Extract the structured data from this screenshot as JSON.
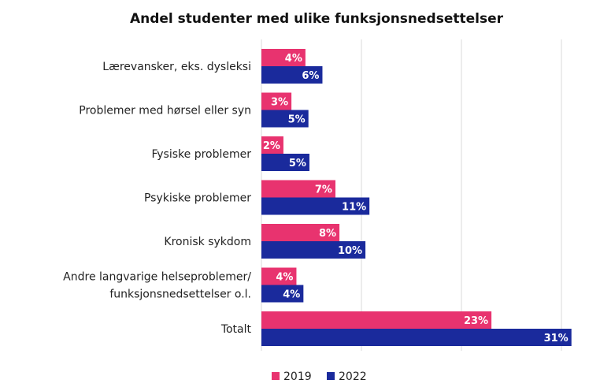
{
  "chart_data": {
    "type": "bar",
    "orientation": "horizontal",
    "title": "Andel studenter med ulike funksjonsnedsettelser",
    "xlabel": "",
    "ylabel": "",
    "categories": [
      "Lærevansker, eks. dysleksi",
      "Problemer med hørsel eller syn",
      "Fysiske problemer",
      "Psykiske problemer",
      "Kronisk sykdom",
      "Andre langvarige helseproblemer/ funksjonsnedsettelser o.l.",
      "Totalt"
    ],
    "category_lines": [
      [
        "Lærevansker, eks. dysleksi"
      ],
      [
        "Problemer med hørsel eller syn"
      ],
      [
        "Fysiske problemer"
      ],
      [
        "Psykiske problemer"
      ],
      [
        "Kronisk sykdom"
      ],
      [
        "Andre langvarige helseproblemer/",
        "funksjonsnedsettelser o.l."
      ],
      [
        "Totalt"
      ]
    ],
    "series": [
      {
        "name": "2019",
        "color": "#e8336f",
        "values": [
          4.4,
          3.0,
          2.2,
          7.4,
          7.8,
          3.5,
          23.0
        ],
        "labels": [
          "4%",
          "3%",
          "2%",
          "7%",
          "8%",
          "4%",
          "23%"
        ]
      },
      {
        "name": "2022",
        "color": "#1a2a9c",
        "values": [
          6.1,
          4.7,
          4.8,
          10.8,
          10.4,
          4.2,
          31.0
        ],
        "labels": [
          "6%",
          "5%",
          "5%",
          "11%",
          "10%",
          "4%",
          "31%"
        ]
      }
    ],
    "xlim": [
      0,
      30
    ],
    "gridlines": [
      10,
      20,
      30
    ],
    "grid": true,
    "gridline_color": "#d9d9d9",
    "legend_position": "bottom"
  }
}
